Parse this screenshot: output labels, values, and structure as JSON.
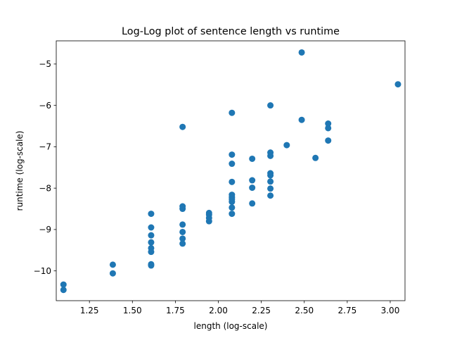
{
  "chart_data": {
    "type": "scatter",
    "title": "Log-Log plot of sentence length vs runtime",
    "xlabel": "length (log-scale)",
    "ylabel": "runtime (log-scale)",
    "xlim": [
      1.057,
      3.086
    ],
    "ylim": [
      -10.72,
      -4.44
    ],
    "xticks": [
      1.25,
      1.5,
      1.75,
      2.0,
      2.25,
      2.5,
      2.75,
      3.0
    ],
    "xtick_labels": [
      "1.25",
      "1.50",
      "1.75",
      "2.00",
      "2.25",
      "2.50",
      "2.75",
      "3.00"
    ],
    "yticks": [
      -10,
      -9,
      -8,
      -7,
      -6,
      -5
    ],
    "ytick_labels": [
      "−10",
      "−9",
      "−8",
      "−7",
      "−6",
      "−5"
    ],
    "grid": false,
    "color": "#1f77b4",
    "points": [
      [
        1.099,
        -10.33
      ],
      [
        1.099,
        -10.46
      ],
      [
        1.386,
        -9.85
      ],
      [
        1.386,
        -10.06
      ],
      [
        1.609,
        -8.62
      ],
      [
        1.609,
        -8.95
      ],
      [
        1.609,
        -9.14
      ],
      [
        1.609,
        -9.31
      ],
      [
        1.609,
        -9.45
      ],
      [
        1.609,
        -9.54
      ],
      [
        1.609,
        -9.84
      ],
      [
        1.609,
        -9.87
      ],
      [
        1.792,
        -6.52
      ],
      [
        1.792,
        -8.44
      ],
      [
        1.792,
        -8.5
      ],
      [
        1.792,
        -8.88
      ],
      [
        1.792,
        -9.06
      ],
      [
        1.792,
        -9.22
      ],
      [
        1.792,
        -9.34
      ],
      [
        1.946,
        -8.6
      ],
      [
        1.946,
        -8.64
      ],
      [
        1.946,
        -8.72
      ],
      [
        1.946,
        -8.8
      ],
      [
        2.079,
        -6.18
      ],
      [
        2.079,
        -7.19
      ],
      [
        2.079,
        -7.41
      ],
      [
        2.079,
        -7.85
      ],
      [
        2.079,
        -8.16
      ],
      [
        2.079,
        -8.22
      ],
      [
        2.079,
        -8.27
      ],
      [
        2.079,
        -8.33
      ],
      [
        2.079,
        -8.47
      ],
      [
        2.079,
        -8.62
      ],
      [
        2.197,
        -7.29
      ],
      [
        2.197,
        -7.81
      ],
      [
        2.197,
        -7.99
      ],
      [
        2.197,
        -8.37
      ],
      [
        2.303,
        -6.0
      ],
      [
        2.303,
        -7.14
      ],
      [
        2.303,
        -7.22
      ],
      [
        2.303,
        -7.64
      ],
      [
        2.303,
        -7.69
      ],
      [
        2.303,
        -7.84
      ],
      [
        2.303,
        -8.01
      ],
      [
        2.303,
        -8.18
      ],
      [
        2.398,
        -6.96
      ],
      [
        2.485,
        -4.72
      ],
      [
        2.485,
        -6.35
      ],
      [
        2.565,
        -7.27
      ],
      [
        2.639,
        -6.44
      ],
      [
        2.639,
        -6.55
      ],
      [
        2.639,
        -6.85
      ],
      [
        3.045,
        -5.49
      ]
    ]
  }
}
